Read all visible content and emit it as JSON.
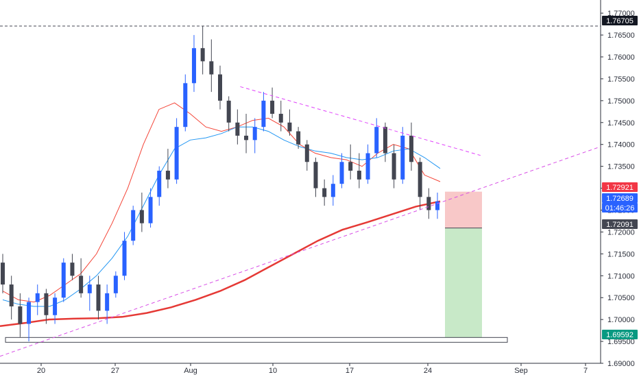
{
  "chart_data": {
    "type": "candlestick",
    "instrument_timeframe": "4H",
    "y_axis": {
      "min": 1.69,
      "max": 1.773,
      "ticks": [
        "1.77000",
        "1.76500",
        "1.76000",
        "1.75500",
        "1.75000",
        "1.74500",
        "1.74000",
        "1.73500",
        "1.73000",
        "1.72500",
        "1.72000",
        "1.71500",
        "1.71000",
        "1.70500",
        "1.70000",
        "1.69500",
        "1.69000"
      ],
      "tick_values": [
        1.77,
        1.765,
        1.76,
        1.755,
        1.75,
        1.745,
        1.74,
        1.735,
        1.73,
        1.725,
        1.72,
        1.715,
        1.71,
        1.705,
        1.7,
        1.695,
        1.69
      ]
    },
    "x_axis": {
      "tick_labels": [
        "20",
        "27",
        "Aug",
        "10",
        "17",
        "24",
        "Sep",
        "7"
      ]
    },
    "price_labels": [
      {
        "text": "1.76705",
        "value": 1.76705,
        "color": "#131722"
      },
      {
        "text": "1.72921",
        "value": 1.72921,
        "color": "#f23645"
      },
      {
        "text": "1.72689",
        "value": 1.72689,
        "color": "#2962ff"
      },
      {
        "text": "01:46:26",
        "value": 1.72525,
        "color": "#2962ff"
      },
      {
        "text": "1.72091",
        "value": 1.72091,
        "color": "#434651"
      },
      {
        "text": "1.69592",
        "value": 1.69592,
        "color": "#089981"
      }
    ],
    "horizontal_levels": [
      {
        "value": 1.76705,
        "style": "dashed",
        "color": "#434651"
      }
    ],
    "support_box": {
      "from_value": 1.6948,
      "to_value": 1.6959
    },
    "position": {
      "entry": 1.72091,
      "stop": 1.72921,
      "target": 1.69592,
      "stop_color": "#f8c8c8",
      "target_color": "#c8e9c8"
    },
    "trendlines": [
      {
        "name": "",
        "color": "#d84ee6",
        "style": "dashed",
        "points": [
          [
            0,
            1.6916
          ],
          [
            1,
            1.7395
          ]
        ]
      },
      {
        "name": "",
        "color": "#e040fb",
        "style": "dashed",
        "points": [
          [
            0.4,
            1.7532
          ],
          [
            0.8,
            1.7375
          ]
        ]
      }
    ],
    "moving_averages": [
      {
        "color": "#f44336",
        "values": [
          1.7065,
          1.7045,
          1.704,
          1.7055,
          1.708,
          1.7105,
          1.715,
          1.722,
          1.73,
          1.74,
          1.748,
          1.7495,
          1.747,
          1.744,
          1.743,
          1.744,
          1.7455,
          1.746,
          1.744,
          1.74,
          1.738,
          1.737,
          1.7365,
          1.735,
          1.738,
          1.74,
          1.739,
          1.733,
          1.7315
        ]
      },
      {
        "color": "#2196f3",
        "values": [
          1.7045,
          1.7035,
          1.703,
          1.703,
          1.7045,
          1.707,
          1.71,
          1.714,
          1.719,
          1.726,
          1.733,
          1.739,
          1.741,
          1.7415,
          1.7425,
          1.744,
          1.744,
          1.743,
          1.741,
          1.7395,
          1.7385,
          1.738,
          1.737,
          1.7365,
          1.737,
          1.7385,
          1.739,
          1.737,
          1.7345
        ]
      },
      {
        "color": "#e53935",
        "values": [
          1.6985,
          1.6992,
          1.7,
          1.7002,
          1.7003,
          1.7006,
          1.7015,
          1.7028,
          1.7045,
          1.7065,
          1.709,
          1.712,
          1.715,
          1.718,
          1.7205,
          1.7222,
          1.724,
          1.7258,
          1.727
        ]
      }
    ],
    "candles": [
      [
        1.713,
        1.715,
        1.706,
        1.708
      ],
      [
        1.708,
        1.71,
        1.7,
        1.703
      ],
      [
        1.703,
        1.706,
        1.696,
        1.699
      ],
      [
        1.699,
        1.705,
        1.695,
        1.704
      ],
      [
        1.704,
        1.708,
        1.701,
        1.706
      ],
      [
        1.706,
        1.707,
        1.699,
        1.701
      ],
      [
        1.701,
        1.706,
        1.699,
        1.705
      ],
      [
        1.705,
        1.714,
        1.704,
        1.713
      ],
      [
        1.713,
        1.715,
        1.709,
        1.71
      ],
      [
        1.71,
        1.714,
        1.705,
        1.706
      ],
      [
        1.706,
        1.71,
        1.702,
        1.708
      ],
      [
        1.708,
        1.71,
        1.7,
        1.702
      ],
      [
        1.702,
        1.708,
        1.699,
        1.706
      ],
      [
        1.706,
        1.711,
        1.705,
        1.71
      ],
      [
        1.71,
        1.72,
        1.709,
        1.718
      ],
      [
        1.718,
        1.726,
        1.717,
        1.725
      ],
      [
        1.725,
        1.729,
        1.72,
        1.722
      ],
      [
        1.722,
        1.73,
        1.721,
        1.728
      ],
      [
        1.728,
        1.735,
        1.726,
        1.734
      ],
      [
        1.734,
        1.739,
        1.73,
        1.732
      ],
      [
        1.732,
        1.746,
        1.731,
        1.744
      ],
      [
        1.744,
        1.756,
        1.743,
        1.754
      ],
      [
        1.754,
        1.765,
        1.752,
        1.762
      ],
      [
        1.762,
        1.767,
        1.756,
        1.759
      ],
      [
        1.759,
        1.764,
        1.752,
        1.756
      ],
      [
        1.756,
        1.758,
        1.748,
        1.75
      ],
      [
        1.75,
        1.751,
        1.743,
        1.745
      ],
      [
        1.745,
        1.748,
        1.74,
        1.742
      ],
      [
        1.742,
        1.747,
        1.738,
        1.741
      ],
      [
        1.741,
        1.746,
        1.738,
        1.744
      ],
      [
        1.744,
        1.752,
        1.743,
        1.75
      ],
      [
        1.75,
        1.753,
        1.746,
        1.747
      ],
      [
        1.747,
        1.75,
        1.743,
        1.745
      ],
      [
        1.745,
        1.748,
        1.742,
        1.743
      ],
      [
        1.743,
        1.744,
        1.739,
        1.74
      ],
      [
        1.74,
        1.741,
        1.734,
        1.736
      ],
      [
        1.736,
        1.737,
        1.728,
        1.73
      ],
      [
        1.73,
        1.732,
        1.726,
        1.728
      ],
      [
        1.728,
        1.733,
        1.726,
        1.731
      ],
      [
        1.731,
        1.738,
        1.73,
        1.736
      ],
      [
        1.736,
        1.74,
        1.732,
        1.734
      ],
      [
        1.734,
        1.738,
        1.73,
        1.732
      ],
      [
        1.732,
        1.74,
        1.731,
        1.738
      ],
      [
        1.738,
        1.746,
        1.737,
        1.744
      ],
      [
        1.744,
        1.745,
        1.736,
        1.738
      ],
      [
        1.738,
        1.74,
        1.73,
        1.732
      ],
      [
        1.732,
        1.744,
        1.731,
        1.742
      ],
      [
        1.742,
        1.745,
        1.734,
        1.736
      ],
      [
        1.736,
        1.737,
        1.725,
        1.728
      ],
      [
        1.728,
        1.73,
        1.723,
        1.725
      ],
      [
        1.725,
        1.729,
        1.723,
        1.727
      ]
    ]
  }
}
